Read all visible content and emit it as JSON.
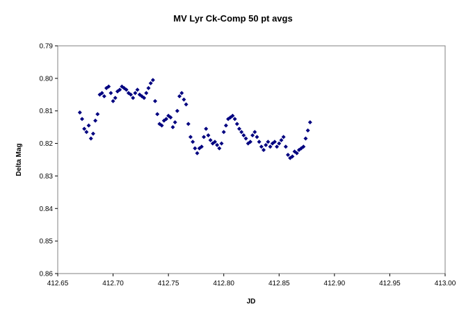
{
  "chart_data": {
    "type": "scatter",
    "title": "MV Lyr Ck-Comp 50 pt avgs",
    "xlabel": "JD",
    "ylabel": "Delta Mag",
    "xlim": [
      412.65,
      413.0
    ],
    "ylim": [
      0.79,
      0.86
    ],
    "y_inverted": true,
    "grid": false,
    "legend": "none",
    "marker": "diamond",
    "x_ticks": [
      "412.65",
      "412.70",
      "412.75",
      "412.80",
      "412.85",
      "412.90",
      "412.95",
      "413.00"
    ],
    "y_ticks": [
      "0.79",
      "0.80",
      "0.81",
      "0.82",
      "0.83",
      "0.84",
      "0.85",
      "0.86"
    ],
    "colors": {
      "series": "#000080",
      "plot_border": "#808080"
    },
    "series": [
      {
        "x": [
          412.67,
          412.672,
          412.674,
          412.676,
          412.678,
          412.68,
          412.682,
          412.684,
          412.686,
          412.688,
          412.69,
          412.692,
          412.694,
          412.696,
          412.698,
          412.7,
          412.702,
          412.704,
          412.706,
          412.708,
          412.71,
          412.712,
          412.714,
          412.716,
          412.718,
          412.72,
          412.722,
          412.724,
          412.726,
          412.728,
          412.73,
          412.732,
          412.734,
          412.736,
          412.738,
          412.74,
          412.742,
          412.744,
          412.746,
          412.748,
          412.75,
          412.752,
          412.754,
          412.756,
          412.758,
          412.76,
          412.762,
          412.764,
          412.766,
          412.768,
          412.77,
          412.772,
          412.774,
          412.776,
          412.778,
          412.78,
          412.782,
          412.784,
          412.786,
          412.788,
          412.79,
          412.792,
          412.794,
          412.796,
          412.798,
          412.8,
          412.802,
          412.804,
          412.806,
          412.808,
          412.81,
          412.812,
          412.814,
          412.816,
          412.818,
          412.82,
          412.822,
          412.824,
          412.826,
          412.828,
          412.83,
          412.832,
          412.834,
          412.836,
          412.838,
          412.84,
          412.842,
          412.844,
          412.846,
          412.848,
          412.85,
          412.852,
          412.854,
          412.856,
          412.858,
          412.86,
          412.862,
          412.864,
          412.866,
          412.868,
          412.87,
          412.872,
          412.874,
          412.876,
          412.878
        ],
        "y": [
          0.8105,
          0.8125,
          0.8155,
          0.8165,
          0.8145,
          0.8185,
          0.817,
          0.813,
          0.811,
          0.805,
          0.8045,
          0.8055,
          0.803,
          0.8025,
          0.8045,
          0.807,
          0.806,
          0.804,
          0.8035,
          0.8025,
          0.803,
          0.8035,
          0.8045,
          0.805,
          0.806,
          0.8045,
          0.8035,
          0.805,
          0.8055,
          0.806,
          0.8045,
          0.803,
          0.8015,
          0.8005,
          0.807,
          0.811,
          0.814,
          0.8145,
          0.813,
          0.8125,
          0.8115,
          0.812,
          0.815,
          0.8135,
          0.81,
          0.8055,
          0.8045,
          0.8065,
          0.808,
          0.814,
          0.818,
          0.8195,
          0.8215,
          0.823,
          0.8215,
          0.821,
          0.818,
          0.8155,
          0.8175,
          0.819,
          0.82,
          0.8195,
          0.8205,
          0.8215,
          0.82,
          0.8165,
          0.8145,
          0.8125,
          0.812,
          0.8115,
          0.8125,
          0.814,
          0.8155,
          0.8165,
          0.8175,
          0.8185,
          0.82,
          0.8195,
          0.8175,
          0.8165,
          0.818,
          0.8195,
          0.821,
          0.822,
          0.8205,
          0.8195,
          0.821,
          0.82,
          0.8195,
          0.821,
          0.82,
          0.819,
          0.818,
          0.821,
          0.8235,
          0.8245,
          0.824,
          0.8225,
          0.823,
          0.822,
          0.8215,
          0.821,
          0.8185,
          0.816,
          0.8135
        ]
      }
    ]
  }
}
